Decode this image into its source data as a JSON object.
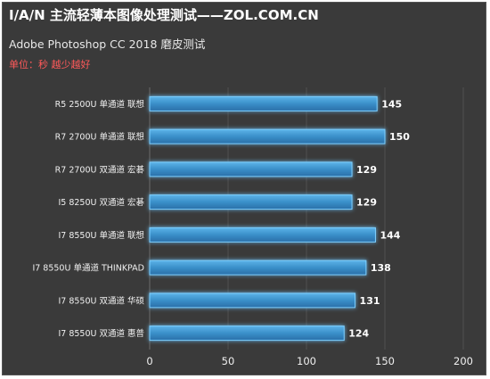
{
  "chart_data": {
    "type": "bar",
    "orientation": "horizontal",
    "title": "I/A/N 主流轻薄本图像处理测试——ZOL.COM.CN",
    "subtitle": "Adobe Photoshop CC 2018 磨皮测试",
    "unit_note": "单位：秒 越少越好",
    "categories": [
      "R5 2500U 单通道 联想",
      "R7 2700U 单通道 联想",
      "R7 2700U 双通道 宏碁",
      "I5 8250U 双通道 宏碁",
      "I7 8550U 单通道 联想",
      "I7 8550U 单通道 THINKPAD",
      "I7 8550U 双通道 华硕",
      "I7 8550U 双通道 惠普"
    ],
    "values": [
      145,
      150,
      129,
      129,
      144,
      138,
      131,
      124
    ],
    "xlim": [
      0,
      200
    ],
    "xticks": [
      0,
      50,
      100,
      150,
      200
    ],
    "grid": true,
    "colors": {
      "background": "#3a3a3a",
      "bar": "#3a8fc9",
      "bar_glow": "#7fd0ff",
      "unit_text": "#ff5a5a"
    }
  }
}
